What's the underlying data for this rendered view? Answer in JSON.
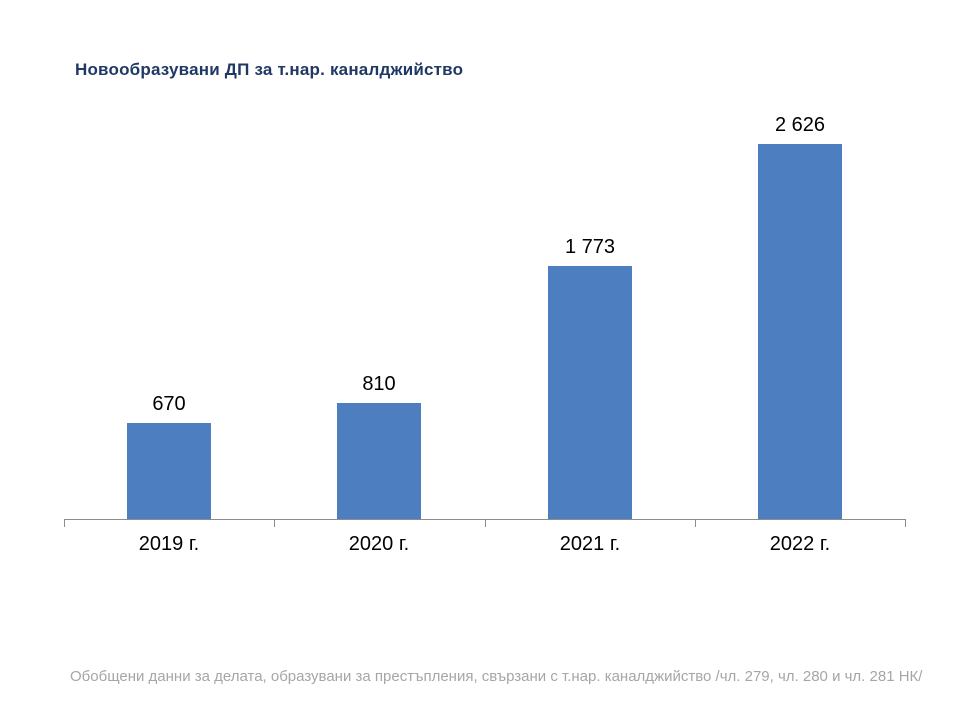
{
  "header": {
    "title": "Новообразувани ДП за т.нар. каналджийство"
  },
  "footer": {
    "note": "Обобщени данни за делата, образувани за престъпления, свързани с т.нар. каналджийство /чл. 279, чл. 280 и чл. 281 НК/"
  },
  "chart_data": {
    "type": "bar",
    "title": "Новообразувани ДП за т.нар. каналджийство",
    "categories": [
      "2019 г.",
      "2020 г.",
      "2021 г.",
      "2022 г."
    ],
    "values": [
      670,
      810,
      1773,
      2626
    ],
    "value_labels": [
      "670",
      "810",
      "1 773",
      "2 626"
    ],
    "xlabel": "",
    "ylabel": "",
    "ylim": [
      0,
      2900
    ],
    "grid": false,
    "legend": false,
    "data_labels": true,
    "colors": {
      "bar": "#4d7ec0",
      "axis": "#8c8c8c",
      "labels": "#000000",
      "title": "#1f3864",
      "footer": "#a6a6a6",
      "background": "#ffffff"
    }
  }
}
